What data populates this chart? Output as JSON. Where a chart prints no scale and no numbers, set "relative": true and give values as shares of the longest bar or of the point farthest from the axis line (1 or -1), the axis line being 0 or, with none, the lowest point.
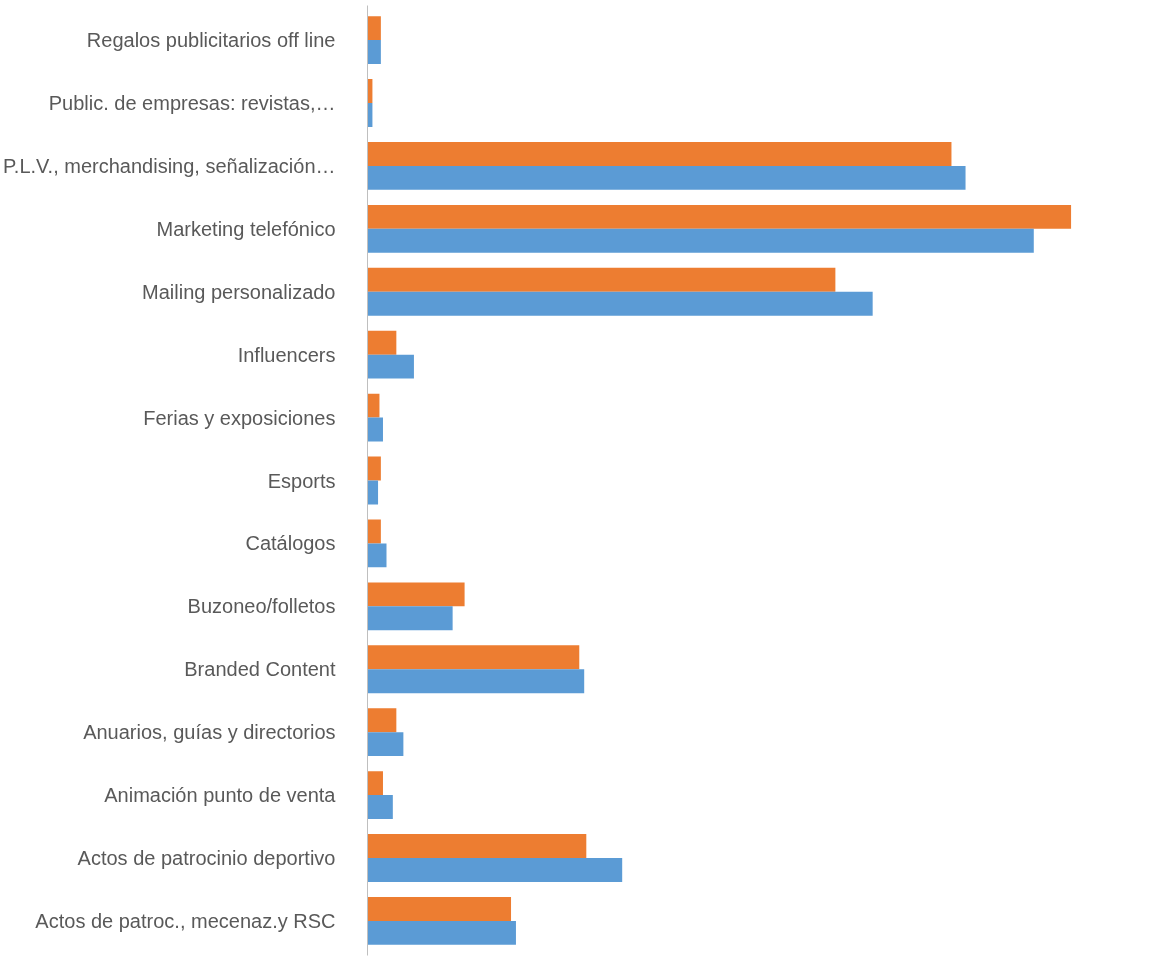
{
  "chart_data": {
    "type": "bar",
    "orientation": "horizontal",
    "relative": true,
    "categories": [
      "Regalos publicitarios off line",
      "Public. de empresas: revistas,…",
      "P.L.V., merchandising, señalización…",
      "Marketing telefónico",
      "Mailing personalizado",
      "Influencers",
      "Ferias y exposiciones",
      "Esports",
      "Catálogos",
      "Buzoneo/folletos",
      "Branded Content",
      "Anuarios, guías y directorios",
      "Animación punto de venta",
      "Actos de patrocinio deportivo",
      "Actos de patroc., mecenaz.y RSC"
    ],
    "series": [
      {
        "color": "#ed7d31",
        "values": [
          0.019,
          0.007,
          0.83,
          1,
          0.665,
          0.041,
          0.017,
          0.019,
          0.019,
          0.138,
          0.301,
          0.041,
          0.022,
          0.311,
          0.204
        ]
      },
      {
        "color": "#5b9bd5",
        "values": [
          0.019,
          0.007,
          0.85,
          0.947,
          0.718,
          0.066,
          0.022,
          0.015,
          0.027,
          0.121,
          0.308,
          0.051,
          0.036,
          0.362,
          0.211
        ]
      }
    ]
  }
}
